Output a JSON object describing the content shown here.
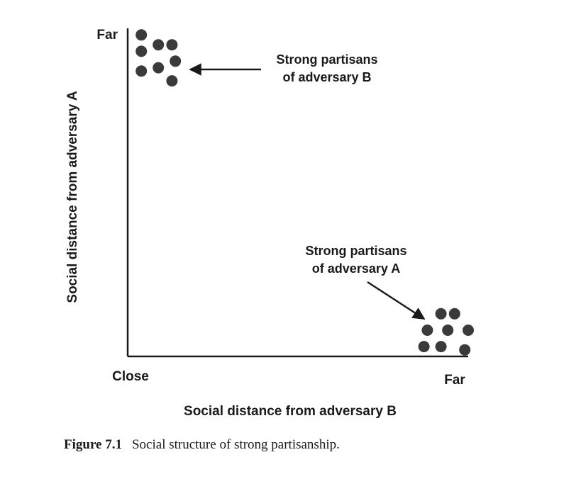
{
  "chart_data": {
    "type": "scatter",
    "xlabel": "Social distance from adversary B",
    "ylabel": "Social distance from adversary A",
    "x_tick_labels": [
      "Close",
      "Far"
    ],
    "y_tick_labels": [
      "Far"
    ],
    "xlim": [
      0,
      1
    ],
    "ylim": [
      0,
      1
    ],
    "grid": false,
    "series": [
      {
        "points": [
          {
            "x": 0.04,
            "y": 0.98
          },
          {
            "x": 0.04,
            "y": 0.93
          },
          {
            "x": 0.04,
            "y": 0.87
          },
          {
            "x": 0.09,
            "y": 0.95
          },
          {
            "x": 0.09,
            "y": 0.88
          },
          {
            "x": 0.13,
            "y": 0.95
          },
          {
            "x": 0.14,
            "y": 0.9
          },
          {
            "x": 0.13,
            "y": 0.84
          }
        ]
      },
      {
        "points": [
          {
            "x": 0.92,
            "y": 0.13
          },
          {
            "x": 0.96,
            "y": 0.13
          },
          {
            "x": 0.88,
            "y": 0.08
          },
          {
            "x": 0.94,
            "y": 0.08
          },
          {
            "x": 1.0,
            "y": 0.08
          },
          {
            "x": 0.87,
            "y": 0.03
          },
          {
            "x": 0.92,
            "y": 0.03
          },
          {
            "x": 0.99,
            "y": 0.02
          }
        ]
      }
    ],
    "annotations": [
      {
        "line1": "Strong partisans",
        "line2": "of adversary B"
      },
      {
        "line1": "Strong partisans",
        "line2": "of adversary A"
      }
    ],
    "colors": {
      "axis": "#1a1a1a",
      "dots": "#3a3a3a"
    }
  },
  "caption": {
    "figure_number": "Figure 7.1",
    "text": "Social structure of strong partisanship."
  }
}
